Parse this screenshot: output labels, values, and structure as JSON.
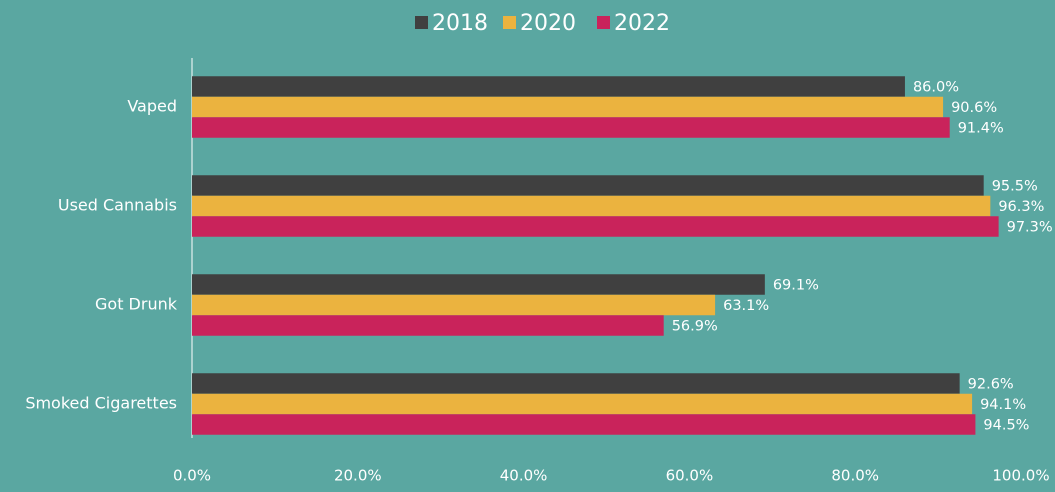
{
  "chart_data": {
    "type": "bar",
    "orientation": "horizontal",
    "categories": [
      "Vaped",
      "Used Cannabis",
      "Got Drunk",
      "Smoked Cigarettes"
    ],
    "series": [
      {
        "name": "2018",
        "color": "#404040",
        "values": [
          86.0,
          95.5,
          69.1,
          92.6
        ],
        "value_labels": [
          "86.0%",
          "95.5%",
          "69.1%",
          "92.6%"
        ]
      },
      {
        "name": "2020",
        "color": "#ebb33f",
        "values": [
          90.6,
          96.3,
          63.1,
          94.1
        ],
        "value_labels": [
          "90.6%",
          "96.3%",
          "63.1%",
          "94.1%"
        ]
      },
      {
        "name": "2022",
        "color": "#c9235b",
        "values": [
          91.4,
          97.3,
          56.9,
          94.5
        ],
        "value_labels": [
          "91.4%",
          "97.3%",
          "56.9%",
          "94.5%"
        ]
      }
    ],
    "xlim": [
      0,
      100
    ],
    "xticks": [
      {
        "value": 0,
        "label": "0.0%"
      },
      {
        "value": 20,
        "label": "20.0%"
      },
      {
        "value": 40,
        "label": "40.0%"
      },
      {
        "value": 60,
        "label": "60.0%"
      },
      {
        "value": 80,
        "label": "80.0%"
      },
      {
        "value": 100,
        "label": "100.0%"
      }
    ],
    "legend": "top",
    "grid": false
  }
}
